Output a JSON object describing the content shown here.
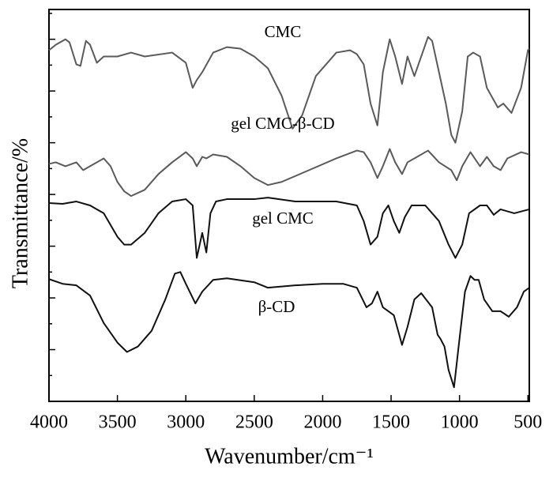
{
  "chart_data": {
    "type": "line",
    "xlabel": "Wavenumber/cm⁻¹",
    "ylabel": "Transmittance/%",
    "xlim": [
      4000,
      490
    ],
    "xticks": [
      4000,
      3500,
      3000,
      2500,
      2000,
      1500,
      1000,
      500
    ],
    "ylim": [
      0,
      500
    ],
    "yticks": [
      0,
      33,
      66,
      99,
      132,
      165,
      198,
      231,
      264,
      297,
      330,
      363,
      396,
      429,
      462,
      495
    ],
    "show_ytick_labels": false,
    "series": [
      {
        "name": "CMC",
        "color": "#5a5a5a",
        "x": [
          4000,
          3950,
          3880,
          3850,
          3800,
          3770,
          3730,
          3700,
          3650,
          3600,
          3500,
          3400,
          3300,
          3100,
          3000,
          2950,
          2920,
          2880,
          2800,
          2700,
          2600,
          2500,
          2400,
          2300,
          2220,
          2150,
          2050,
          1900,
          1800,
          1750,
          1700,
          1650,
          1600,
          1560,
          1510,
          1470,
          1420,
          1380,
          1330,
          1280,
          1230,
          1200,
          1150,
          1100,
          1060,
          1030,
          980,
          940,
          900,
          850,
          800,
          720,
          680,
          620,
          550,
          500,
          490
        ],
        "values": [
          448,
          455,
          462,
          458,
          430,
          428,
          460,
          455,
          432,
          440,
          440,
          445,
          440,
          445,
          432,
          400,
          410,
          420,
          445,
          452,
          450,
          440,
          425,
          390,
          348,
          365,
          415,
          445,
          448,
          443,
          430,
          380,
          352,
          420,
          462,
          440,
          405,
          440,
          415,
          440,
          465,
          460,
          420,
          380,
          340,
          330,
          370,
          440,
          445,
          440,
          400,
          375,
          380,
          368,
          400,
          448,
          450
        ]
      },
      {
        "name": "gel CMC-β-CD",
        "color": "#5a5a5a",
        "x": [
          4000,
          3950,
          3880,
          3800,
          3750,
          3700,
          3600,
          3550,
          3500,
          3450,
          3400,
          3300,
          3200,
          3100,
          3000,
          2950,
          2920,
          2880,
          2850,
          2800,
          2700,
          2600,
          2500,
          2400,
          2300,
          2100,
          1900,
          1750,
          1700,
          1650,
          1600,
          1560,
          1510,
          1470,
          1420,
          1380,
          1330,
          1230,
          1150,
          1060,
          1020,
          980,
          920,
          850,
          800,
          750,
          700,
          650,
          550,
          490
        ],
        "values": [
          303,
          305,
          300,
          305,
          295,
          300,
          310,
          300,
          280,
          268,
          262,
          270,
          290,
          305,
          318,
          310,
          300,
          312,
          310,
          315,
          312,
          300,
          285,
          276,
          280,
          295,
          310,
          320,
          318,
          305,
          285,
          300,
          322,
          305,
          290,
          305,
          310,
          320,
          305,
          295,
          282,
          300,
          318,
          300,
          312,
          300,
          295,
          310,
          318,
          315
        ]
      },
      {
        "name": "gel CMC",
        "color": "#111111",
        "x": [
          4000,
          3900,
          3800,
          3700,
          3600,
          3500,
          3450,
          3400,
          3300,
          3200,
          3100,
          3000,
          2950,
          2920,
          2880,
          2850,
          2820,
          2780,
          2700,
          2500,
          2400,
          2200,
          1900,
          1750,
          1700,
          1650,
          1600,
          1560,
          1520,
          1480,
          1440,
          1400,
          1350,
          1250,
          1150,
          1080,
          1030,
          980,
          930,
          850,
          800,
          750,
          700,
          600,
          490
        ],
        "values": [
          253,
          252,
          255,
          250,
          240,
          210,
          200,
          200,
          215,
          240,
          255,
          258,
          250,
          183,
          215,
          190,
          240,
          255,
          258,
          258,
          260,
          255,
          255,
          250,
          230,
          200,
          210,
          240,
          250,
          230,
          215,
          235,
          250,
          250,
          230,
          200,
          183,
          200,
          240,
          250,
          250,
          238,
          245,
          240,
          245
        ]
      },
      {
        "name": "β-CD",
        "color": "#111111",
        "x": [
          4000,
          3900,
          3800,
          3700,
          3600,
          3500,
          3430,
          3350,
          3250,
          3150,
          3080,
          3040,
          3000,
          2930,
          2880,
          2800,
          2700,
          2500,
          2400,
          2200,
          2000,
          1850,
          1750,
          1680,
          1640,
          1600,
          1560,
          1480,
          1420,
          1380,
          1330,
          1280,
          1200,
          1160,
          1140,
          1110,
          1080,
          1040,
          1000,
          960,
          920,
          890,
          860,
          820,
          760,
          700,
          640,
          580,
          530,
          490
        ],
        "values": [
          156,
          150,
          148,
          135,
          100,
          75,
          63,
          70,
          90,
          130,
          163,
          165,
          150,
          125,
          140,
          155,
          157,
          152,
          145,
          148,
          150,
          150,
          145,
          120,
          125,
          140,
          120,
          110,
          72,
          95,
          130,
          138,
          120,
          85,
          80,
          70,
          40,
          18,
          80,
          140,
          160,
          155,
          155,
          130,
          115,
          115,
          108,
          120,
          140,
          145
        ]
      }
    ]
  }
}
